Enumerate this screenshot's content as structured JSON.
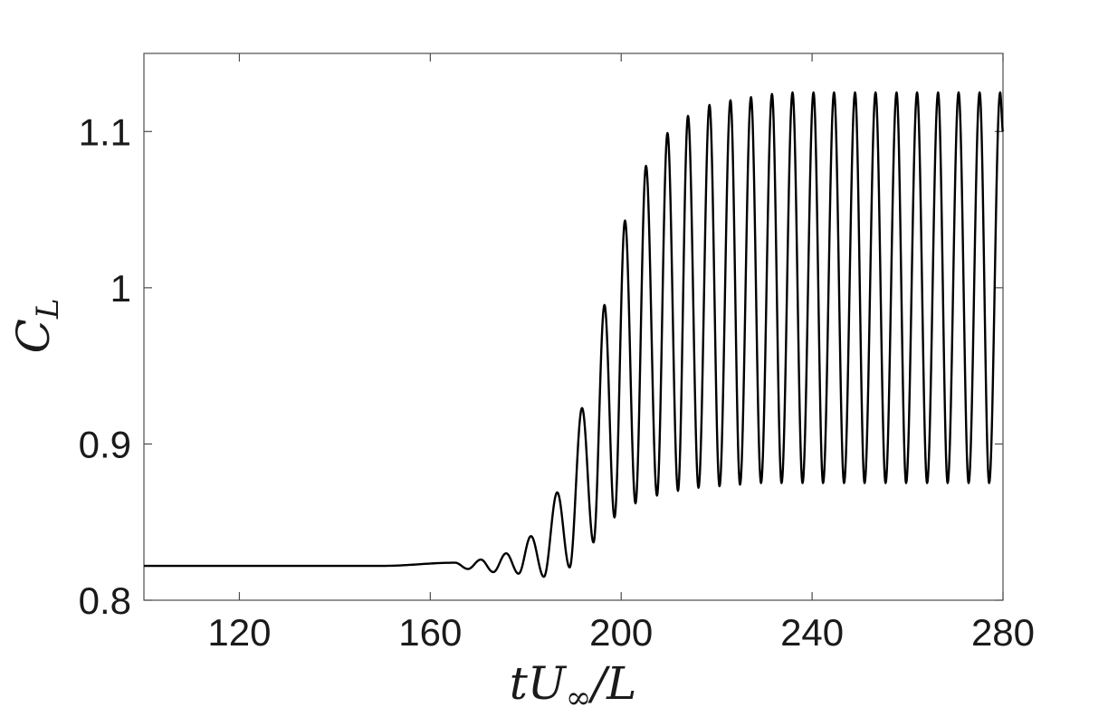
{
  "chart_data": {
    "type": "line",
    "title": "",
    "xlabel": "tU∞/L",
    "ylabel": "C_L",
    "xlabel_parts": {
      "t": "t",
      "U": "U",
      "sub": "∞",
      "rest": "/L"
    },
    "ylabel_parts": {
      "C": "C",
      "sub": "L"
    },
    "xlim": [
      100,
      280
    ],
    "ylim": [
      0.8,
      1.15
    ],
    "xticks": [
      120,
      160,
      200,
      240,
      280
    ],
    "xtick_labels": [
      "120",
      "160",
      "200",
      "240",
      "280"
    ],
    "yticks": [
      0.8,
      0.9,
      1.0,
      1.1
    ],
    "ytick_labels": [
      "0.8",
      "0.9",
      "1",
      "1.1"
    ],
    "grid": false,
    "line_color": "#000000",
    "series": [
      {
        "baseline_value": 0.822,
        "oscillation_onset_x": 150,
        "oscillation_period": 4.3,
        "saturated_mean": 1.0,
        "saturated_amplitude": 0.125,
        "peak_maxima": [
          {
            "x": 165.2,
            "y": 0.824
          },
          {
            "x": 170.6,
            "y": 0.826
          },
          {
            "x": 175.9,
            "y": 0.83
          },
          {
            "x": 181.1,
            "y": 0.841
          },
          {
            "x": 186.6,
            "y": 0.869
          },
          {
            "x": 191.8,
            "y": 0.923
          },
          {
            "x": 196.5,
            "y": 0.989
          },
          {
            "x": 200.8,
            "y": 1.043
          },
          {
            "x": 205.2,
            "y": 1.078
          },
          {
            "x": 209.7,
            "y": 1.099
          },
          {
            "x": 214.0,
            "y": 1.11
          },
          {
            "x": 218.5,
            "y": 1.117
          },
          {
            "x": 222.9,
            "y": 1.12
          },
          {
            "x": 227.2,
            "y": 1.122
          },
          {
            "x": 231.6,
            "y": 1.124
          },
          {
            "x": 235.9,
            "y": 1.125
          },
          {
            "x": 240.3,
            "y": 1.125
          },
          {
            "x": 244.6,
            "y": 1.125
          },
          {
            "x": 249.0,
            "y": 1.125
          },
          {
            "x": 253.3,
            "y": 1.125
          },
          {
            "x": 257.7,
            "y": 1.125
          },
          {
            "x": 262.0,
            "y": 1.125
          },
          {
            "x": 266.4,
            "y": 1.125
          },
          {
            "x": 270.7,
            "y": 1.125
          },
          {
            "x": 275.1,
            "y": 1.125
          },
          {
            "x": 279.4,
            "y": 1.125
          }
        ],
        "peak_minima": [
          {
            "x": 167.9,
            "y": 0.82
          },
          {
            "x": 173.2,
            "y": 0.818
          },
          {
            "x": 178.5,
            "y": 0.817
          },
          {
            "x": 183.8,
            "y": 0.815
          },
          {
            "x": 189.2,
            "y": 0.821
          },
          {
            "x": 194.2,
            "y": 0.837
          },
          {
            "x": 198.6,
            "y": 0.853
          },
          {
            "x": 203.0,
            "y": 0.862
          },
          {
            "x": 207.5,
            "y": 0.867
          },
          {
            "x": 211.9,
            "y": 0.87
          },
          {
            "x": 216.2,
            "y": 0.872
          },
          {
            "x": 220.6,
            "y": 0.873
          },
          {
            "x": 224.9,
            "y": 0.874
          },
          {
            "x": 229.3,
            "y": 0.875
          },
          {
            "x": 233.6,
            "y": 0.875
          },
          {
            "x": 238.0,
            "y": 0.875
          },
          {
            "x": 242.3,
            "y": 0.875
          },
          {
            "x": 246.7,
            "y": 0.875
          },
          {
            "x": 251.0,
            "y": 0.875
          },
          {
            "x": 255.4,
            "y": 0.875
          },
          {
            "x": 259.7,
            "y": 0.875
          },
          {
            "x": 264.1,
            "y": 0.875
          },
          {
            "x": 268.4,
            "y": 0.875
          },
          {
            "x": 272.8,
            "y": 0.875
          },
          {
            "x": 277.1,
            "y": 0.875
          }
        ],
        "end_point": {
          "x": 280,
          "y": 1.1
        }
      }
    ]
  }
}
